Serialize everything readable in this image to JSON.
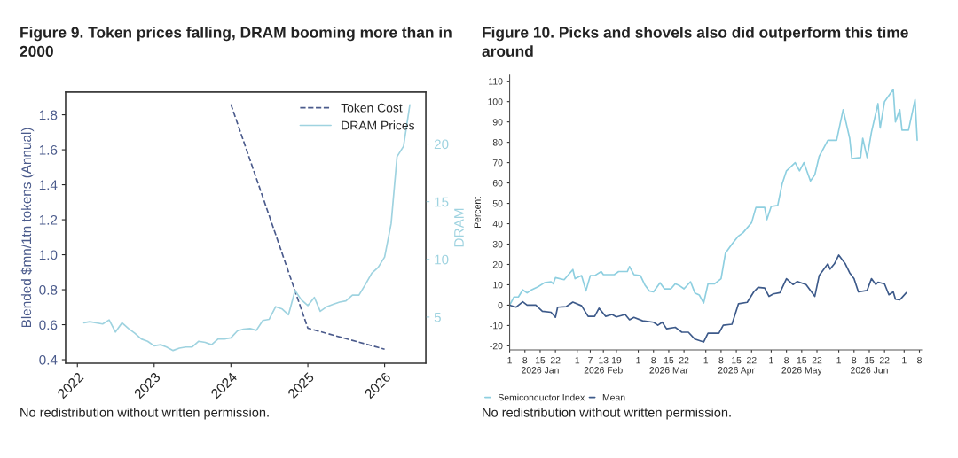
{
  "chart_data": [
    {
      "type": "line",
      "title": "Figure 9. Token prices falling, DRAM booming more than in\n2000",
      "ylabel": "Blended $mn/1tn tokens (Annual)",
      "y2label": "DRAM",
      "xlim": [
        "2021-11-06",
        "2026-07-16"
      ],
      "xticks": [
        {
          "value": "2022",
          "label": "2022"
        },
        {
          "value": "2023",
          "label": "2023"
        },
        {
          "value": "2024",
          "label": "2024"
        },
        {
          "value": "2025",
          "label": "2025"
        },
        {
          "value": "2026",
          "label": "2026"
        }
      ],
      "ylim": [
        0.38,
        1.93
      ],
      "yticks": [
        0.4,
        0.6,
        0.8,
        {
          "value": 1.0,
          "label": "1.0"
        },
        1.2,
        1.4,
        1.6,
        1.8
      ],
      "y2lim": [
        1.0,
        24.5
      ],
      "y2ticks": [
        5,
        10,
        15,
        20
      ],
      "legend": "top right",
      "grid": false,
      "series": [
        {
          "name": "Token Cost",
          "color": "#4b5b8c",
          "line_style": "dashed",
          "x": [
            "2024-01",
            "2025-01",
            "2026-01"
          ],
          "values": [
            1.86,
            0.58,
            0.46
          ]
        },
        {
          "name": "DRAM Prices",
          "color": "#9fd3e0",
          "line_style": "solid",
          "axis": "y2",
          "x": [
            "2022-02",
            "2022-03",
            "2022-05",
            "2022-06",
            "2022-07",
            "2022-08",
            "2022-09",
            "2022-10",
            "2022-11",
            "2022-12",
            "2023-01",
            "2023-02",
            "2023-03",
            "2023-04",
            "2023-05",
            "2023-06",
            "2023-07",
            "2023-08",
            "2023-09",
            "2023-10",
            "2023-11",
            "2023-12",
            "2024-01",
            "2024-02",
            "2024-03",
            "2024-04",
            "2024-05",
            "2024-06",
            "2024-07",
            "2024-08",
            "2024-09",
            "2024-10",
            "2024-11",
            "2024-12",
            "2025-01",
            "2025-02",
            "2025-03",
            "2025-04",
            "2025-05",
            "2025-06",
            "2025-07",
            "2025-08",
            "2025-09",
            "2025-10",
            "2025-11",
            "2025-12",
            "2026-01",
            "2026-02",
            "2026-03",
            "2026-04",
            "2026-05"
          ],
          "values": [
            4.5,
            4.6,
            4.4,
            4.75,
            3.7,
            4.5,
            4.0,
            3.6,
            3.1,
            2.9,
            2.5,
            2.6,
            2.4,
            2.1,
            2.3,
            2.4,
            2.4,
            2.9,
            2.8,
            2.6,
            3.1,
            3.1,
            3.2,
            3.8,
            3.95,
            4.0,
            3.85,
            4.7,
            4.8,
            5.9,
            5.7,
            5.2,
            7.3,
            6.5,
            6.0,
            6.7,
            5.5,
            5.9,
            6.1,
            6.3,
            6.4,
            6.9,
            6.9,
            7.8,
            8.8,
            9.3,
            10.2,
            13.1,
            18.9,
            19.8,
            23.4
          ]
        }
      ],
      "annotations": [
        "No redistribution without written permission."
      ]
    },
    {
      "type": "line",
      "title": "Figure 10. Picks and shovels also did outperform this time\naround",
      "ylabel": "Percent",
      "xlim": [
        "2026-01-01",
        "2026-07-09"
      ],
      "xticks": [
        {
          "value": "2026-01-01",
          "label": "1"
        },
        {
          "value": "2026-01-08",
          "label": "8"
        },
        {
          "value": "2026-01-15",
          "label": "15\n2026 Jan"
        },
        {
          "value": "2026-01-22",
          "label": "22"
        },
        {
          "value": "2026-02-01",
          "label": "1"
        },
        {
          "value": "2026-02-07",
          "label": "7"
        },
        {
          "value": "2026-02-13",
          "label": "13\n2026 Feb"
        },
        {
          "value": "2026-02-19",
          "label": "19"
        },
        {
          "value": "2026-03-01",
          "label": "1"
        },
        {
          "value": "2026-03-08",
          "label": "8"
        },
        {
          "value": "2026-03-15",
          "label": "15\n2026 Mar"
        },
        {
          "value": "2026-03-22",
          "label": "22"
        },
        {
          "value": "2026-04-01",
          "label": "1"
        },
        {
          "value": "2026-04-08",
          "label": "8"
        },
        {
          "value": "2026-04-15",
          "label": "15\n2026 Apr"
        },
        {
          "value": "2026-04-22",
          "label": "22"
        },
        {
          "value": "2026-05-01",
          "label": "1"
        },
        {
          "value": "2026-05-08",
          "label": "8"
        },
        {
          "value": "2026-05-15",
          "label": "15\n2026 May"
        },
        {
          "value": "2026-05-22",
          "label": "22"
        },
        {
          "value": "2026-06-01",
          "label": "1"
        },
        {
          "value": "2026-06-08",
          "label": "8"
        },
        {
          "value": "2026-06-15",
          "label": "15\n2026 Jun"
        },
        {
          "value": "2026-06-22",
          "label": "22"
        },
        {
          "value": "2026-07-01",
          "label": "1"
        },
        {
          "value": "2026-07-08",
          "label": "8"
        }
      ],
      "ylim": [
        -22,
        113
      ],
      "yticks": [
        -20,
        -10,
        0,
        10,
        20,
        30,
        40,
        50,
        60,
        70,
        80,
        90,
        100,
        110
      ],
      "legend": "bottom",
      "grid": false,
      "series": [
        {
          "name": "Semiconductor Index",
          "color": "#8ecfe0",
          "line_style": "solid",
          "x": [
            "2026-01-01",
            "2026-01-03",
            "2026-01-05",
            "2026-01-07",
            "2026-01-09",
            "2026-01-11",
            "2026-01-14",
            "2026-01-17",
            "2026-01-20",
            "2026-01-21",
            "2026-01-22",
            "2026-01-26",
            "2026-01-30",
            "2026-01-31",
            "2026-02-03",
            "2026-02-05",
            "2026-02-07",
            "2026-02-09",
            "2026-02-12",
            "2026-02-13",
            "2026-02-18",
            "2026-02-20",
            "2026-02-24",
            "2026-02-25",
            "2026-02-27",
            "2026-03-02",
            "2026-03-04",
            "2026-03-06",
            "2026-03-08",
            "2026-03-11",
            "2026-03-13",
            "2026-03-16",
            "2026-03-18",
            "2026-03-20",
            "2026-03-22",
            "2026-03-25",
            "2026-03-27",
            "2026-03-29",
            "2026-03-31",
            "2026-04-02",
            "2026-04-05",
            "2026-04-08",
            "2026-04-10",
            "2026-04-13",
            "2026-04-16",
            "2026-04-18",
            "2026-04-22",
            "2026-04-24",
            "2026-04-28",
            "2026-04-29",
            "2026-05-01",
            "2026-05-04",
            "2026-05-06",
            "2026-05-08",
            "2026-05-12",
            "2026-05-14",
            "2026-05-16",
            "2026-05-19",
            "2026-05-21",
            "2026-05-23",
            "2026-05-27",
            "2026-05-31",
            "2026-06-03",
            "2026-06-06",
            "2026-06-07",
            "2026-06-11",
            "2026-06-12",
            "2026-06-14",
            "2026-06-16",
            "2026-06-19",
            "2026-06-20",
            "2026-06-22",
            "2026-06-24",
            "2026-06-26",
            "2026-06-27",
            "2026-06-29",
            "2026-06-30",
            "2026-07-03",
            "2026-07-06",
            "2026-07-07"
          ],
          "values": [
            0,
            4,
            4,
            7.5,
            6,
            7.5,
            9,
            11,
            11.5,
            10.5,
            13.5,
            12.5,
            17.5,
            13,
            14.5,
            7,
            14.5,
            14.5,
            16.5,
            15,
            15,
            16.5,
            16.5,
            19,
            15,
            14.5,
            10,
            7,
            6.5,
            11,
            8,
            8,
            10.5,
            9.5,
            8,
            11.5,
            6,
            5,
            1,
            10.5,
            10.5,
            13,
            25.5,
            30,
            34,
            35.5,
            40.5,
            48,
            48,
            42,
            48.5,
            49,
            59.5,
            66,
            70,
            66,
            70,
            61,
            64,
            73,
            81,
            81,
            96,
            82,
            72,
            72.5,
            82,
            72.5,
            85,
            99,
            87,
            100,
            103,
            106,
            90,
            96,
            86,
            86,
            101,
            81
          ]
        },
        {
          "name": "Mean",
          "color": "#3d5a8a",
          "line_style": "solid",
          "x": [
            "2026-01-01",
            "2026-01-04",
            "2026-01-07",
            "2026-01-09",
            "2026-01-13",
            "2026-01-16",
            "2026-01-20",
            "2026-01-22",
            "2026-01-23",
            "2026-01-27",
            "2026-01-30",
            "2026-02-03",
            "2026-02-06",
            "2026-02-09",
            "2026-02-11",
            "2026-02-14",
            "2026-02-17",
            "2026-02-19",
            "2026-02-23",
            "2026-02-25",
            "2026-02-27",
            "2026-03-03",
            "2026-03-08",
            "2026-03-10",
            "2026-03-12",
            "2026-03-14",
            "2026-03-18",
            "2026-03-21",
            "2026-03-24",
            "2026-03-27",
            "2026-03-31",
            "2026-04-02",
            "2026-04-07",
            "2026-04-09",
            "2026-04-13",
            "2026-04-16",
            "2026-04-20",
            "2026-04-23",
            "2026-04-25",
            "2026-04-28",
            "2026-04-30",
            "2026-05-02",
            "2026-05-05",
            "2026-05-08",
            "2026-05-11",
            "2026-05-13",
            "2026-05-17",
            "2026-05-21",
            "2026-05-23",
            "2026-05-27",
            "2026-05-28",
            "2026-05-30",
            "2026-06-01",
            "2026-06-04",
            "2026-06-06",
            "2026-06-08",
            "2026-06-10",
            "2026-06-14",
            "2026-06-16",
            "2026-06-18",
            "2026-06-19",
            "2026-06-22",
            "2026-06-24",
            "2026-06-26",
            "2026-06-27",
            "2026-06-29",
            "2026-07-02"
          ],
          "values": [
            0,
            -1,
            1.7,
            0,
            0,
            -3,
            -3.5,
            -6,
            -1,
            -0.7,
            1.5,
            -0.3,
            -5.5,
            -5.5,
            -1.5,
            -5.5,
            -4.6,
            -5.8,
            -4.6,
            -7.2,
            -6,
            -7.7,
            -8.4,
            -9.9,
            -8.4,
            -11.6,
            -10.9,
            -13.3,
            -13.3,
            -16.7,
            -18.1,
            -13.8,
            -13.8,
            -9.9,
            -9.4,
            0.7,
            1.4,
            6.5,
            8.7,
            8.4,
            4.3,
            5.5,
            6.1,
            13,
            10.1,
            11.6,
            10.1,
            4.3,
            14.5,
            20.3,
            17.7,
            20.3,
            24.6,
            20.3,
            15.9,
            13,
            6.5,
            7.2,
            13,
            10.1,
            11.3,
            10.4,
            5.1,
            6.5,
            2.9,
            2.6,
            6.1
          ]
        }
      ],
      "annotations": [
        "No redistribution without written permission."
      ]
    }
  ]
}
